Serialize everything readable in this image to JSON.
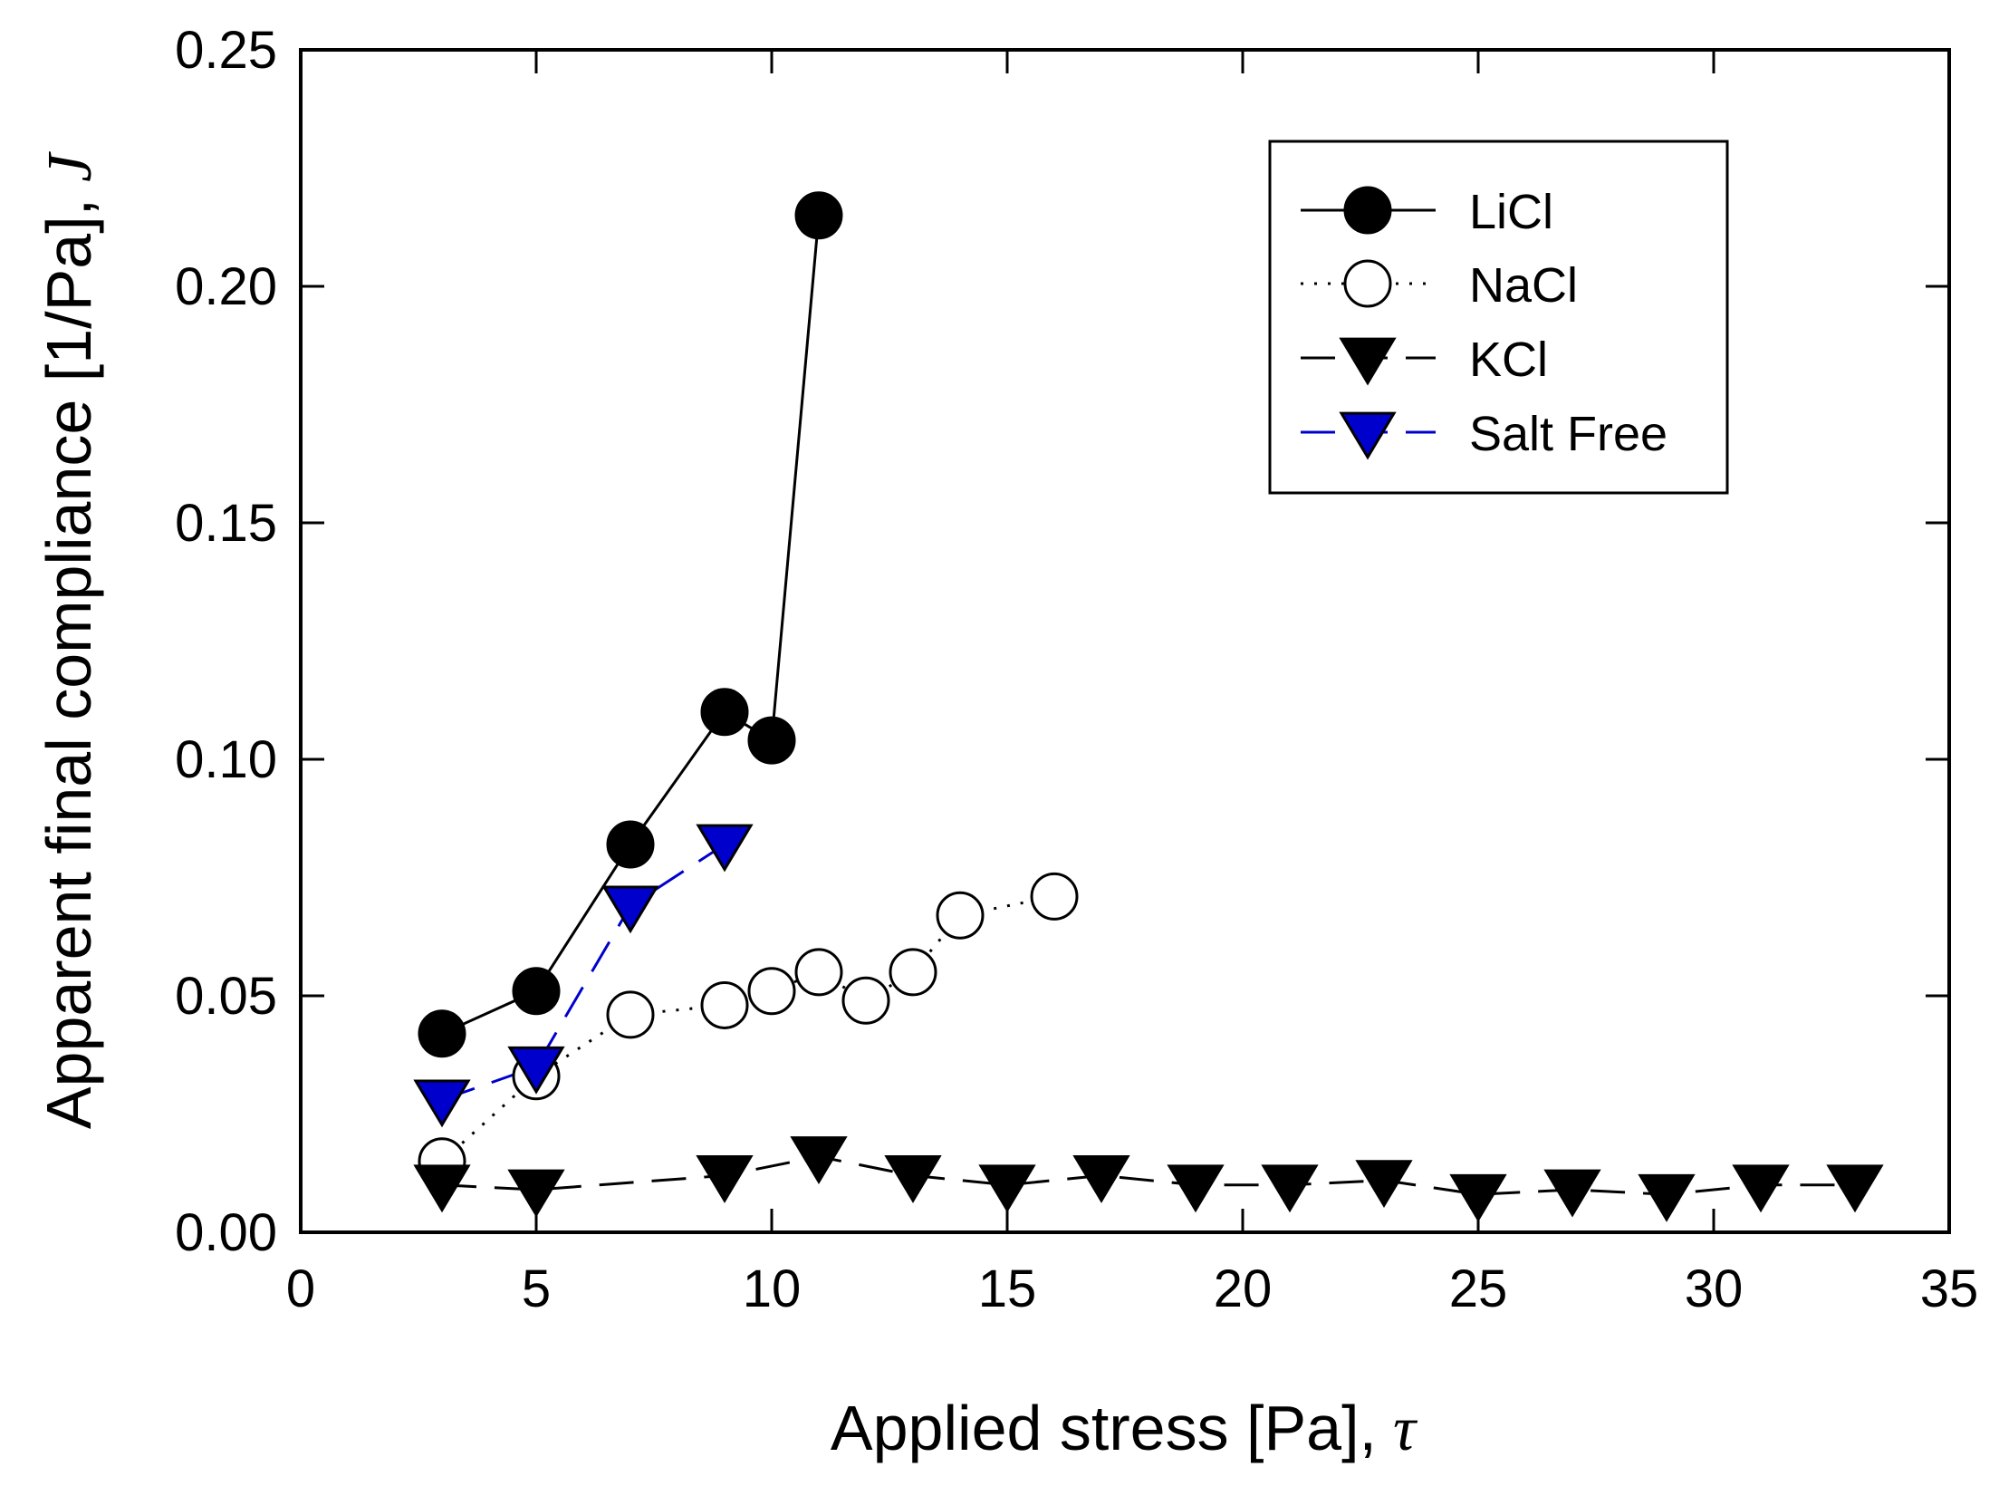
{
  "chart_data": {
    "type": "scatter",
    "title": "",
    "xlabel": "Applied stress [Pa],",
    "xlabel_symbol": "τ",
    "ylabel": "Apparent final compliance [1/Pa],",
    "ylabel_symbol": "J",
    "xlim": [
      0,
      35
    ],
    "ylim": [
      0,
      0.25
    ],
    "x_ticks": [
      0,
      5,
      10,
      15,
      20,
      25,
      30,
      35
    ],
    "x_tick_labels": [
      "0",
      "5",
      "10",
      "15",
      "20",
      "25",
      "30",
      "35"
    ],
    "y_ticks": [
      0,
      0.05,
      0.1,
      0.15,
      0.2,
      0.25
    ],
    "y_tick_labels": [
      "0.00",
      "0.05",
      "0.10",
      "0.15",
      "0.20",
      "0.25"
    ],
    "grid": false,
    "legend_position": "top-right",
    "series": [
      {
        "name": "LiCl",
        "marker": "circle-filled",
        "line": "solid",
        "color": "#000000",
        "x": [
          3,
          5,
          7,
          9,
          10,
          11
        ],
        "y": [
          0.042,
          0.051,
          0.082,
          0.11,
          0.104,
          0.215
        ]
      },
      {
        "name": "NaCl",
        "marker": "circle-open",
        "line": "dotted",
        "color": "#000000",
        "x": [
          3,
          5,
          7,
          9,
          10,
          11,
          12,
          13,
          14,
          16
        ],
        "y": [
          0.015,
          0.033,
          0.046,
          0.048,
          0.051,
          0.055,
          0.049,
          0.055,
          0.067,
          0.071
        ]
      },
      {
        "name": "KCl",
        "marker": "triangle-down-filled",
        "line": "dashed",
        "color": "#000000",
        "x": [
          3,
          5,
          9,
          11,
          13,
          15,
          17,
          19,
          21,
          23,
          25,
          27,
          29,
          31,
          33
        ],
        "y": [
          0.01,
          0.009,
          0.012,
          0.016,
          0.012,
          0.01,
          0.012,
          0.01,
          0.01,
          0.011,
          0.008,
          0.009,
          0.008,
          0.01,
          0.01
        ]
      },
      {
        "name": "Salt Free",
        "marker": "triangle-down-blue",
        "line": "dashed",
        "color": "#0000cc",
        "x": [
          3,
          5,
          7,
          9
        ],
        "y": [
          0.028,
          0.035,
          0.069,
          0.082
        ]
      }
    ]
  }
}
